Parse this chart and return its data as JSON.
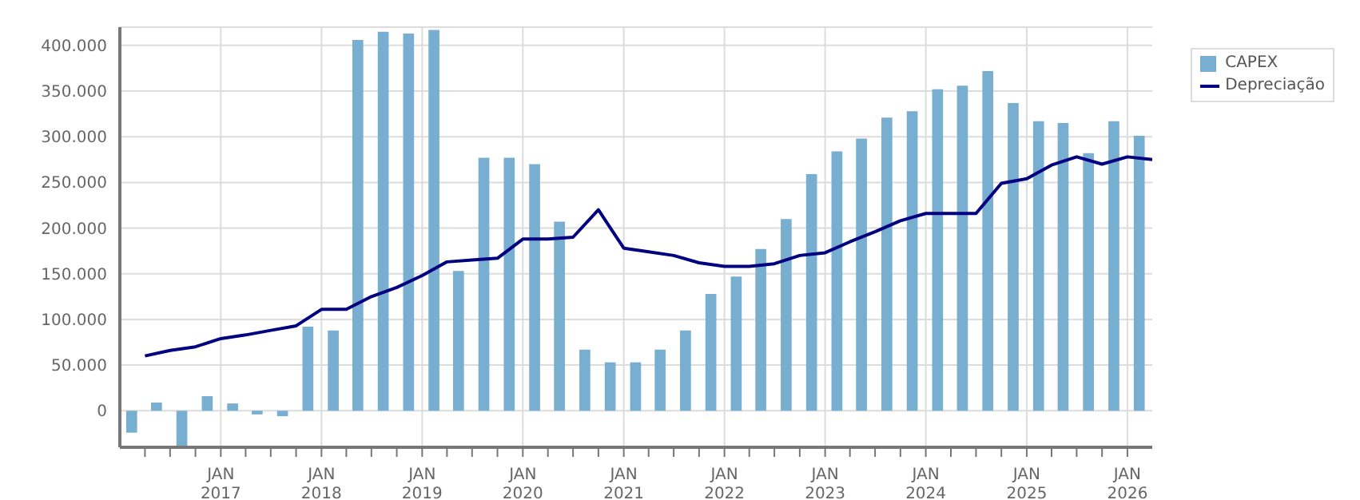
{
  "chart_data": {
    "type": "bar",
    "xlim": [
      "2016-01",
      "2026-04"
    ],
    "xticks": [
      {
        "value": "2016-04",
        "label": null
      },
      {
        "value": "2016-07",
        "label": null
      },
      {
        "value": "2016-10",
        "label": null
      },
      {
        "value": "2017-01",
        "label": "JAN\n2017"
      },
      {
        "value": "2017-04",
        "label": null
      },
      {
        "value": "2017-07",
        "label": null
      },
      {
        "value": "2017-10",
        "label": null
      },
      {
        "value": "2018-01",
        "label": "JAN\n2018"
      },
      {
        "value": "2018-04",
        "label": null
      },
      {
        "value": "2018-07",
        "label": null
      },
      {
        "value": "2018-10",
        "label": null
      },
      {
        "value": "2019-01",
        "label": "JAN\n2019"
      },
      {
        "value": "2019-04",
        "label": null
      },
      {
        "value": "2019-07",
        "label": null
      },
      {
        "value": "2019-10",
        "label": null
      },
      {
        "value": "2020-01",
        "label": "JAN\n2020"
      },
      {
        "value": "2020-04",
        "label": null
      },
      {
        "value": "2020-07",
        "label": null
      },
      {
        "value": "2020-10",
        "label": null
      },
      {
        "value": "2021-01",
        "label": "JAN\n2021"
      },
      {
        "value": "2021-04",
        "label": null
      },
      {
        "value": "2021-07",
        "label": null
      },
      {
        "value": "2021-10",
        "label": null
      },
      {
        "value": "2022-01",
        "label": "JAN\n2022"
      },
      {
        "value": "2022-04",
        "label": null
      },
      {
        "value": "2022-07",
        "label": null
      },
      {
        "value": "2022-10",
        "label": null
      },
      {
        "value": "2023-01",
        "label": "JAN\n2023"
      },
      {
        "value": "2023-04",
        "label": null
      },
      {
        "value": "2023-07",
        "label": null
      },
      {
        "value": "2023-10",
        "label": null
      },
      {
        "value": "2024-01",
        "label": "JAN\n2024"
      },
      {
        "value": "2024-04",
        "label": null
      },
      {
        "value": "2024-07",
        "label": null
      },
      {
        "value": "2024-10",
        "label": null
      },
      {
        "value": "2025-01",
        "label": "JAN\n2025"
      },
      {
        "value": "2025-04",
        "label": null
      },
      {
        "value": "2025-07",
        "label": null
      },
      {
        "value": "2025-10",
        "label": null
      },
      {
        "value": "2026-01",
        "label": "JAN\n2026"
      }
    ],
    "ylim": [
      -40000,
      420000
    ],
    "yticks": [
      {
        "value": 0,
        "label": "0"
      },
      {
        "value": 50000,
        "label": "50.000"
      },
      {
        "value": 100000,
        "label": "100.000"
      },
      {
        "value": 150000,
        "label": "150.000"
      },
      {
        "value": 200000,
        "label": "200.000"
      },
      {
        "value": 250000,
        "label": "250.000"
      },
      {
        "value": 300000,
        "label": "300.000"
      },
      {
        "value": 350000,
        "label": "350.000"
      },
      {
        "value": 400000,
        "label": "400.000"
      }
    ],
    "grid": true,
    "legend": "top right",
    "series": [
      {
        "name": "CAPEX",
        "color": "#78afd1",
        "x": [
          "2016-02-15",
          "2016-05-15",
          "2016-08-15",
          "2016-11-15",
          "2017-02-15",
          "2017-05-15",
          "2017-08-15",
          "2017-11-15",
          "2018-02-15",
          "2018-05-15",
          "2018-08-15",
          "2018-11-15",
          "2019-02-15",
          "2019-05-15",
          "2019-08-15",
          "2019-11-15",
          "2020-02-15",
          "2020-05-15",
          "2020-08-15",
          "2020-11-15",
          "2021-02-15",
          "2021-05-15",
          "2021-08-15",
          "2021-11-15",
          "2022-02-15",
          "2022-05-15",
          "2022-08-15",
          "2022-11-15",
          "2023-02-15",
          "2023-05-15",
          "2023-08-15",
          "2023-11-15",
          "2024-02-15",
          "2024-05-15",
          "2024-08-15",
          "2024-11-15",
          "2025-02-15",
          "2025-05-15",
          "2025-08-15",
          "2025-11-15",
          "2026-02-15"
        ],
        "values": [
          -24000,
          9000,
          -40000,
          16000,
          8000,
          -4000,
          -6000,
          92000,
          88000,
          406000,
          415000,
          413000,
          417000,
          153000,
          277000,
          277000,
          270000,
          207000,
          67000,
          53000,
          53000,
          67000,
          88000,
          128000,
          147000,
          177000,
          210000,
          259000,
          284000,
          298000,
          321000,
          328000,
          352000,
          356000,
          372000,
          337000,
          317000,
          315000,
          282000,
          317000,
          301000
        ]
      },
      {
        "name": "Depreciação",
        "type": "line",
        "color": "#000080",
        "marker": "none",
        "x": [
          "2016-04",
          "2016-07",
          "2016-10",
          "2017-01",
          "2017-04",
          "2017-07",
          "2017-10",
          "2018-01",
          "2018-04",
          "2018-07",
          "2018-10",
          "2019-01",
          "2019-04",
          "2019-07",
          "2019-10",
          "2020-01",
          "2020-04",
          "2020-07",
          "2020-10",
          "2021-01",
          "2021-04",
          "2021-07",
          "2021-10",
          "2022-01",
          "2022-04",
          "2022-07",
          "2022-10",
          "2023-01",
          "2023-04",
          "2023-07",
          "2023-10",
          "2024-01",
          "2024-04",
          "2024-07",
          "2024-10",
          "2025-01",
          "2025-04",
          "2025-07",
          "2025-10",
          "2026-01",
          "2026-04"
        ],
        "values": [
          60000,
          66000,
          70000,
          79000,
          83000,
          88000,
          93000,
          111000,
          111000,
          125000,
          135000,
          148000,
          163000,
          165000,
          167000,
          188000,
          188000,
          190000,
          220000,
          178000,
          174000,
          170000,
          162000,
          158000,
          158000,
          161000,
          170000,
          173000,
          185000,
          196000,
          208000,
          216000,
          216000,
          216000,
          249000,
          254000,
          269000,
          278000,
          270000,
          278000,
          275000
        ]
      }
    ]
  }
}
